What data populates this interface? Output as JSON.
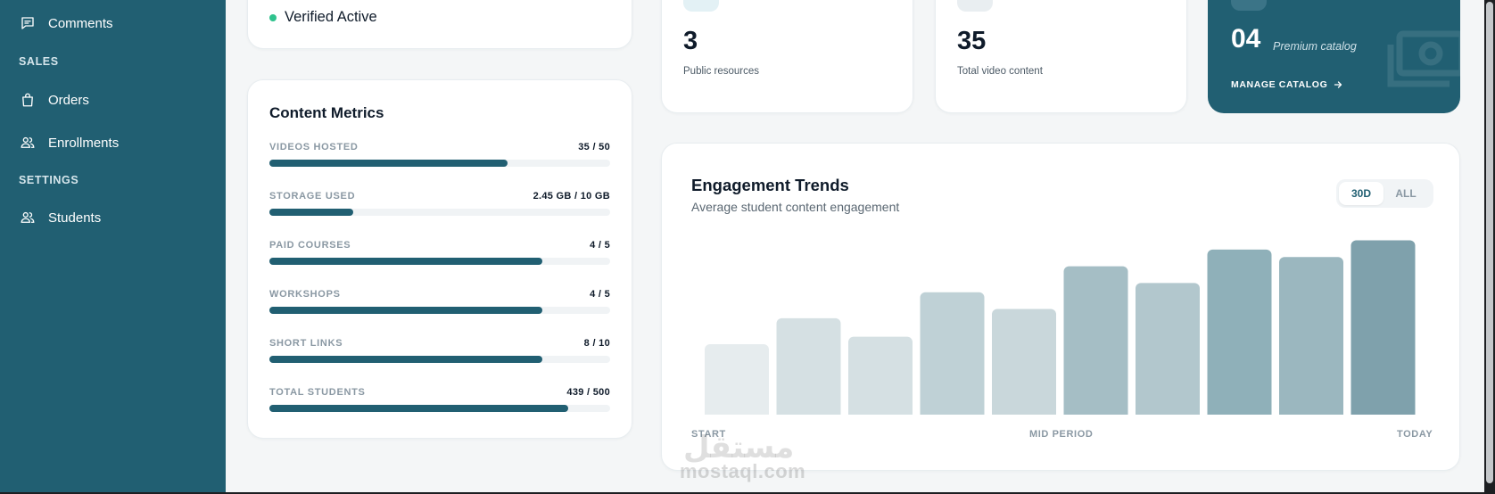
{
  "sidebar": {
    "items": [
      {
        "label": "Comments",
        "icon": "comment-icon"
      },
      {
        "label": "Orders",
        "icon": "bag-icon"
      },
      {
        "label": "Enrollments",
        "icon": "users-icon"
      },
      {
        "label": "Students",
        "icon": "users-icon"
      }
    ],
    "sections": [
      "SALES",
      "SETTINGS"
    ]
  },
  "status": {
    "label": "Verified Active",
    "color": "#2fc28d"
  },
  "metrics": {
    "title": "Content Metrics",
    "items": [
      {
        "label": "VIDEOS HOSTED",
        "value": "35 / 50",
        "progress": 0.7
      },
      {
        "label": "STORAGE USED",
        "value": "2.45 GB / 10 GB",
        "progress": 0.245
      },
      {
        "label": "PAID COURSES",
        "value": "4 / 5",
        "progress": 0.8
      },
      {
        "label": "WORKSHOPS",
        "value": "4 / 5",
        "progress": 0.8
      },
      {
        "label": "SHORT LINKS",
        "value": "8 / 10",
        "progress": 0.8
      },
      {
        "label": "TOTAL STUDENTS",
        "value": "439 / 500",
        "progress": 0.878
      }
    ]
  },
  "stats": [
    {
      "value": "3",
      "caption": "Public resources",
      "chip_color": "#e3f1f5"
    },
    {
      "value": "35",
      "caption": "Total video content",
      "chip_color": "#e9eef1"
    }
  ],
  "catalog": {
    "value": "04",
    "subtitle": "Premium catalog",
    "link": "MANAGE CATALOG"
  },
  "trends": {
    "title": "Engagement Trends",
    "subtitle": "Average student content engagement",
    "toggle": [
      "30D",
      "ALL"
    ],
    "active_toggle": "30D",
    "x_labels": [
      "START",
      "MID PERIOD",
      "TODAY"
    ]
  },
  "chart_data": {
    "type": "bar",
    "title": "Engagement Trends",
    "values": [
      38,
      52,
      42,
      66,
      57,
      80,
      71,
      89,
      85,
      94
    ],
    "ylim": [
      0,
      100
    ],
    "colors": [
      "#e6ecee",
      "#d5e0e3",
      "#d5e0e3",
      "#bfd1d6",
      "#c9d7db",
      "#a5bec5",
      "#b2c7cd",
      "#8fb0b9",
      "#9bb7bf",
      "#7fa1ac"
    ],
    "x_labels": [
      "START",
      "MID PERIOD",
      "TODAY"
    ]
  },
  "watermark": {
    "latin": "mostaql.com",
    "arabic": "مستقل"
  },
  "colors": {
    "primary": "#215f72",
    "accent": "#2fc28d",
    "background": "#f4f6f7"
  }
}
